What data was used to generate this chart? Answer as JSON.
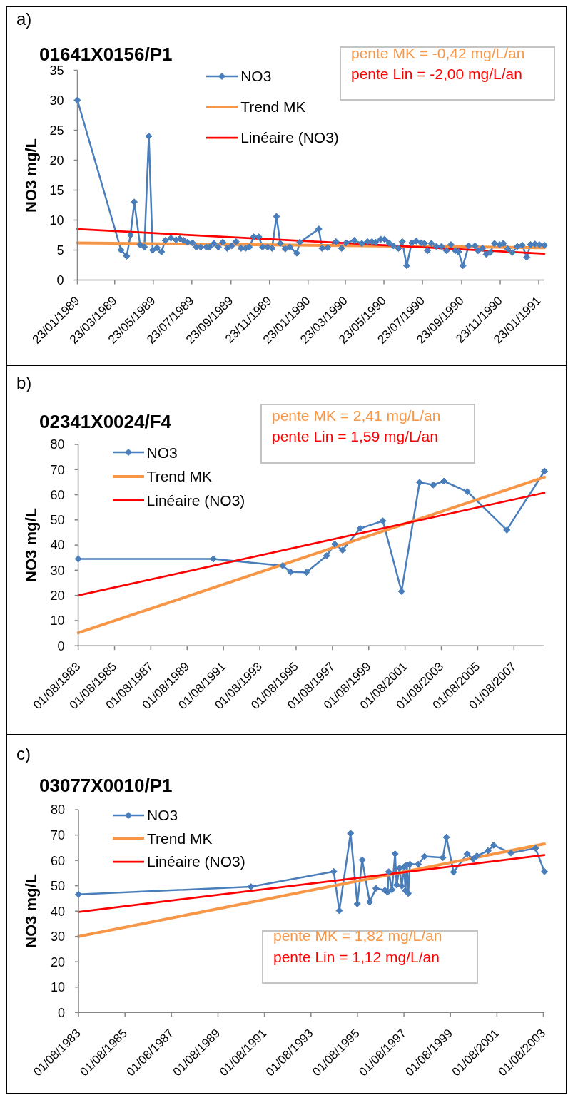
{
  "chart_data": [
    {
      "type": "line",
      "title": "01641X0156/P1",
      "ylabel": "NO3 mg/L",
      "annotations": [
        "a)",
        "pente MK = -0,42 mg/L/an",
        "pente Lin = -2,00 mg/L/an"
      ],
      "marker": "diamond",
      "legend": "top",
      "x": [
        "1989-01-23",
        "1989-04-02",
        "1989-04-11",
        "1989-04-17",
        "1989-04-23",
        "1989-05-02",
        "1989-05-09",
        "1989-05-16",
        "1989-05-22",
        "1989-05-29",
        "1989-06-05",
        "1989-06-11",
        "1989-06-20",
        "1989-06-28",
        "1989-07-04",
        "1989-07-10",
        "1989-07-16",
        "1989-07-24",
        "1989-07-30",
        "1989-08-06",
        "1989-08-15",
        "1989-08-20",
        "1989-08-27",
        "1989-09-03",
        "1989-09-10",
        "1989-09-17",
        "1989-09-24",
        "1989-10-01",
        "1989-10-09",
        "1989-10-16",
        "1989-10-22",
        "1989-10-29",
        "1989-11-06",
        "1989-11-12",
        "1989-11-20",
        "1989-11-27",
        "1989-12-04",
        "1989-12-10",
        "1989-12-18",
        "1989-12-25",
        "1990-01-05",
        "1990-01-10",
        "1990-02-09",
        "1990-02-14",
        "1990-02-23",
        "1990-03-08",
        "1990-03-17",
        "1990-03-24",
        "1990-04-06",
        "1990-04-18",
        "1990-04-27",
        "1990-05-04",
        "1990-05-10",
        "1990-05-18",
        "1990-05-24",
        "1990-05-31",
        "1990-06-07",
        "1990-06-15",
        "1990-06-21",
        "1990-06-28",
        "1990-07-06",
        "1990-07-13",
        "1990-07-21",
        "1990-07-26",
        "1990-07-31",
        "1990-08-06",
        "1990-08-14",
        "1990-08-22",
        "1990-08-30",
        "1990-09-06",
        "1990-09-13",
        "1990-09-18",
        "1990-09-25",
        "1990-10-04",
        "1990-10-14",
        "1990-10-19",
        "1990-10-26",
        "1990-11-01",
        "1990-11-07",
        "1990-11-14",
        "1990-11-22",
        "1990-11-28",
        "1990-12-05",
        "1990-12-12",
        "1990-12-20",
        "1990-12-28",
        "1991-01-04",
        "1991-01-10",
        "1991-01-17",
        "1991-01-24",
        "1991-02-01"
      ],
      "series": [
        {
          "name": "NO3",
          "color": "#4a7ebb",
          "values": [
            30.0,
            5.0,
            4.0,
            7.5,
            13.0,
            5.9,
            5.5,
            24.0,
            5.0,
            5.4,
            4.7,
            6.6,
            7.0,
            6.7,
            6.9,
            6.6,
            6.3,
            6.2,
            5.5,
            5.5,
            5.5,
            5.5,
            6.1,
            5.5,
            6.3,
            5.3,
            5.7,
            6.4,
            5.3,
            5.3,
            5.5,
            7.2,
            7.2,
            5.5,
            5.5,
            5.3,
            10.6,
            6.1,
            5.2,
            5.5,
            4.5,
            6.3,
            8.5,
            5.3,
            5.4,
            6.4,
            5.3,
            6.2,
            6.6,
            6.1,
            6.4,
            6.4,
            6.3,
            6.8,
            6.8,
            6.2,
            5.7,
            5.3,
            6.4,
            2.4,
            6.2,
            6.5,
            6.2,
            6.1,
            4.9,
            6.1,
            5.6,
            5.6,
            4.9,
            5.9,
            4.9,
            4.7,
            2.4,
            5.7,
            5.7,
            4.9,
            5.3,
            4.3,
            4.6,
            6.1,
            5.9,
            6.1,
            5.2,
            4.6,
            5.6,
            5.8,
            3.8,
            5.9,
            6.0,
            5.9,
            5.8
          ]
        },
        {
          "name": "Trend MK",
          "color": "#f79646",
          "marker": "none",
          "x": [
            "1989-01-23",
            "1991-02-01"
          ],
          "values": [
            6.2,
            5.4
          ]
        },
        {
          "name": "Linéaire (NO3)",
          "color": "#ff0000",
          "marker": "none",
          "x": [
            "1989-01-23",
            "1991-02-01"
          ],
          "values": [
            8.5,
            4.4
          ]
        }
      ],
      "xlim": [
        "1989-01-23",
        "1991-02-01"
      ],
      "xticks": [
        {
          "value": "1989-01-23",
          "label": "23/01/1989"
        },
        {
          "value": "1989-03-23",
          "label": "23/03/1989"
        },
        {
          "value": "1989-05-23",
          "label": "23/05/1989"
        },
        {
          "value": "1989-07-23",
          "label": "23/07/1989"
        },
        {
          "value": "1989-09-23",
          "label": "23/09/1989"
        },
        {
          "value": "1989-11-23",
          "label": "23/11/1989"
        },
        {
          "value": "1990-01-23",
          "label": "23/01/1990"
        },
        {
          "value": "1990-03-23",
          "label": "23/03/1990"
        },
        {
          "value": "1990-05-23",
          "label": "23/05/1990"
        },
        {
          "value": "1990-07-23",
          "label": "23/07/1990"
        },
        {
          "value": "1990-09-23",
          "label": "23/09/1990"
        },
        {
          "value": "1990-11-23",
          "label": "23/11/1990"
        },
        {
          "value": "1991-01-23",
          "label": "23/01/1991"
        }
      ],
      "ylim": [
        0,
        35
      ],
      "yticks": [
        0,
        5,
        10,
        15,
        20,
        25,
        30,
        35
      ]
    },
    {
      "type": "line",
      "title": "02341X0024/F4",
      "ylabel": "NO3 mg/L",
      "annotations": [
        "b)",
        "pente MK = 2,41 mg/L/an",
        "pente Lin = 1,59 mg/L/an"
      ],
      "marker": "diamond",
      "legend": "top left",
      "x": [
        "1983-08-01",
        "1991-01-10",
        "1994-11-03",
        "1995-04-13",
        "1996-02-24",
        "1997-04-07",
        "1997-09-17",
        "1998-02-21",
        "1999-02-10",
        "2000-05-11",
        "2001-05-22",
        "2002-05-19",
        "2003-02-20",
        "2003-09-20",
        "2005-01-08",
        "2007-03-10",
        "2009-04-05"
      ],
      "series": [
        {
          "name": "NO3",
          "color": "#4a7ebb",
          "values": [
            34.5,
            34.5,
            31.8,
            29.3,
            29.2,
            35.8,
            40.4,
            38.0,
            46.6,
            49.6,
            21.6,
            64.9,
            63.9,
            65.4,
            61.2,
            46.0,
            69.4
          ]
        },
        {
          "name": "Trend MK",
          "color": "#f79646",
          "marker": "none",
          "x": [
            "1983-08-01",
            "2009-04-05"
          ],
          "values": [
            5.1,
            67.0
          ]
        },
        {
          "name": "Linéaire (NO3)",
          "color": "#ff0000",
          "marker": "none",
          "x": [
            "1983-08-01",
            "2009-04-05"
          ],
          "values": [
            20.0,
            60.8
          ]
        }
      ],
      "xlim": [
        "1983-08-01",
        "2009-04-05"
      ],
      "xticks": [
        {
          "value": "1983-08-01",
          "label": "01/08/1983"
        },
        {
          "value": "1985-08-01",
          "label": "01/08/1985"
        },
        {
          "value": "1987-08-01",
          "label": "01/08/1987"
        },
        {
          "value": "1989-08-01",
          "label": "01/08/1989"
        },
        {
          "value": "1991-08-01",
          "label": "01/08/1991"
        },
        {
          "value": "1993-08-01",
          "label": "01/08/1993"
        },
        {
          "value": "1995-08-01",
          "label": "01/08/1995"
        },
        {
          "value": "1997-08-01",
          "label": "01/08/1997"
        },
        {
          "value": "1999-08-01",
          "label": "01/08/1999"
        },
        {
          "value": "2001-08-01",
          "label": "01/08/2001"
        },
        {
          "value": "2003-08-01",
          "label": "01/08/2003"
        },
        {
          "value": "2005-08-01",
          "label": "01/08/2005"
        },
        {
          "value": "2007-08-01",
          "label": "01/08/2007"
        }
      ],
      "ylim": [
        0,
        80
      ],
      "yticks": [
        0,
        10,
        20,
        30,
        40,
        50,
        60,
        70,
        80
      ]
    },
    {
      "type": "line",
      "title": "03077X0010/P1",
      "ylabel": "NO3 mg/L",
      "annotations": [
        "c)",
        "pente MK = 1,82 mg/L/an",
        "pente Lin = 1,12 mg/L/an"
      ],
      "marker": "diamond",
      "legend": "top left",
      "x": [
        "1983-08-01",
        "1991-01-01",
        "1994-07-25",
        "1994-10-20",
        "1995-04-15",
        "1995-07-30",
        "1995-10-15",
        "1996-02-10",
        "1996-05-18",
        "1996-10-05",
        "1996-11-18",
        "1996-12-05",
        "1997-01-25",
        "1997-03-15",
        "1997-04-08",
        "1997-05-25",
        "1997-06-28",
        "1997-08-04",
        "1997-08-25",
        "1997-09-16",
        "1997-10-08",
        "1997-11-03",
        "1998-03-15",
        "1998-06-20",
        "1999-04-05",
        "1999-05-30",
        "1999-09-20",
        "2000-04-20",
        "2000-07-25",
        "2000-09-20",
        "2001-03-15",
        "2001-06-10",
        "2002-03-10",
        "2003-03-30",
        "2003-08-18"
      ],
      "series": [
        {
          "name": "NO3",
          "color": "#4a7ebb",
          "values": [
            46.6,
            49.6,
            55.6,
            40.2,
            70.7,
            42.9,
            60.2,
            43.6,
            49.0,
            48.2,
            47.5,
            55.5,
            48.4,
            62.6,
            50.3,
            57.0,
            49.9,
            57.5,
            48.1,
            58.2,
            47.0,
            58.5,
            58.5,
            61.6,
            61.1,
            69.1,
            55.4,
            62.6,
            60.5,
            61.8,
            63.8,
            66.0,
            62.9,
            64.8,
            55.6
          ]
        },
        {
          "name": "Trend MK",
          "color": "#f79646",
          "marker": "none",
          "x": [
            "1983-08-01",
            "2003-08-18"
          ],
          "values": [
            30.0,
            66.5
          ]
        },
        {
          "name": "Linéaire (NO3)",
          "color": "#ff0000",
          "marker": "none",
          "x": [
            "1983-08-01",
            "2003-08-18"
          ],
          "values": [
            39.7,
            62.1
          ]
        }
      ],
      "xlim": [
        "1983-08-01",
        "2003-08-18"
      ],
      "xticks": [
        {
          "value": "1983-08-01",
          "label": "01/08/1983"
        },
        {
          "value": "1985-08-01",
          "label": "01/08/1985"
        },
        {
          "value": "1987-08-01",
          "label": "01/08/1987"
        },
        {
          "value": "1989-08-01",
          "label": "01/08/1989"
        },
        {
          "value": "1991-08-01",
          "label": "01/08/1991"
        },
        {
          "value": "1993-08-01",
          "label": "01/08/1993"
        },
        {
          "value": "1995-08-01",
          "label": "01/08/1995"
        },
        {
          "value": "1997-08-01",
          "label": "01/08/1997"
        },
        {
          "value": "1999-08-01",
          "label": "01/08/1999"
        },
        {
          "value": "2001-08-01",
          "label": "01/08/2001"
        },
        {
          "value": "2003-08-01",
          "label": "01/08/2003"
        }
      ],
      "ylim": [
        0,
        80
      ],
      "yticks": [
        0,
        10,
        20,
        30,
        40,
        50,
        60,
        70,
        80
      ]
    }
  ]
}
